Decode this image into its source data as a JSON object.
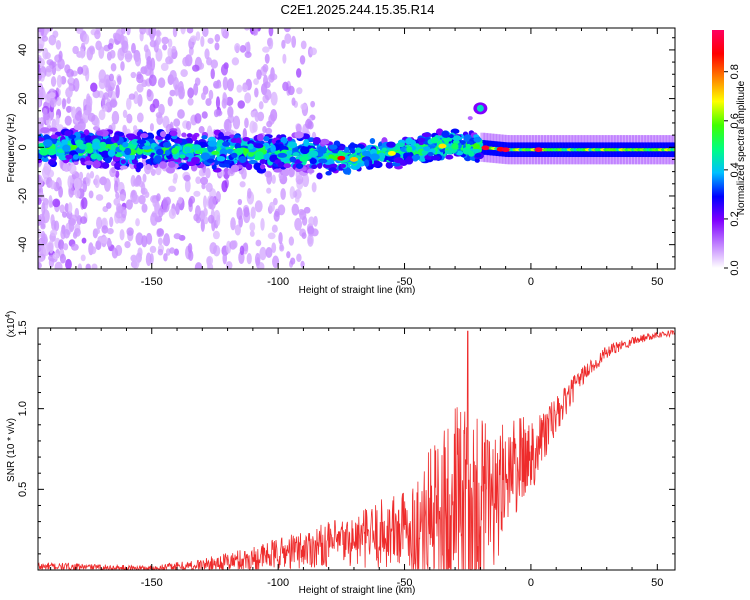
{
  "title": "C2E1.2025.244.15.35.R14",
  "chart_data": [
    {
      "type": "heatmap",
      "xlabel": "Height of straight line (km)",
      "ylabel": "Frequency (Hz)",
      "xlim": [
        -195,
        57
      ],
      "ylim": [
        -50,
        49
      ],
      "xticks": [
        -150,
        -100,
        -50,
        0,
        50
      ],
      "xtick_labels": [
        "-150",
        "-100",
        "-50",
        "0",
        "50"
      ],
      "yticks": [
        -40,
        -20,
        0,
        20,
        40
      ],
      "ytick_labels": [
        "-40",
        "-20",
        "0",
        "20",
        "40"
      ],
      "colorbar": {
        "label": "Normalized spectral amplitude",
        "range": [
          0,
          0.97
        ],
        "ticks": [
          0.0,
          0.2,
          0.4,
          0.6,
          0.8
        ],
        "tick_labels": [
          "0.0",
          "0.2",
          "0.4",
          "0.6",
          "0.8"
        ],
        "colors": [
          "#ffffff",
          "#c080ff",
          "#8000ff",
          "#0000ff",
          "#00c0ff",
          "#00ff80",
          "#40ff00",
          "#ffff00",
          "#ff8000",
          "#ff0000",
          "#ff0060"
        ]
      },
      "ridge": {
        "x": [
          -195,
          -150,
          -100,
          -80,
          -70,
          -60,
          -50,
          -40,
          -30,
          -20,
          -10,
          0,
          20,
          57
        ],
        "frequency": [
          0,
          -1,
          -2,
          -4,
          -5,
          -3,
          -2,
          0,
          1,
          0,
          -1,
          -1,
          -1,
          -1
        ]
      },
      "feature": {
        "x": -20,
        "frequency": 16
      }
    },
    {
      "type": "line",
      "xlabel": "Height of straight line (km)",
      "ylabel": "SNR (10 * v/v)",
      "scale_label": "(x10",
      "scale_exponent": "4",
      "scale_suffix": ")",
      "xlim": [
        -195,
        57
      ],
      "ylim": [
        0,
        1.5
      ],
      "xticks": [
        -150,
        -100,
        -50,
        0,
        50
      ],
      "xtick_labels": [
        "-150",
        "-100",
        "-50",
        "0",
        "50"
      ],
      "yticks": [
        0.5,
        1.0,
        1.5
      ],
      "ytick_labels": [
        "0.5",
        "1.0",
        "1.5"
      ],
      "series": [
        {
          "name": "SNR",
          "color": "#ee2b2b",
          "x": [
            -195,
            -180,
            -160,
            -150,
            -140,
            -130,
            -120,
            -110,
            -100,
            -90,
            -80,
            -70,
            -60,
            -50,
            -45,
            -40,
            -35,
            -30,
            -25,
            -20,
            -15,
            -10,
            -5,
            0,
            10,
            20,
            30,
            40,
            50,
            57
          ],
          "mean": [
            0.02,
            0.02,
            0.01,
            0.01,
            0.02,
            0.03,
            0.05,
            0.07,
            0.1,
            0.13,
            0.16,
            0.18,
            0.22,
            0.25,
            0.28,
            0.35,
            0.4,
            0.42,
            0.45,
            0.44,
            0.5,
            0.6,
            0.65,
            0.72,
            0.95,
            1.2,
            1.35,
            1.42,
            1.46,
            1.47
          ],
          "noise": [
            0.03,
            0.02,
            0.02,
            0.02,
            0.03,
            0.04,
            0.06,
            0.08,
            0.1,
            0.12,
            0.14,
            0.16,
            0.22,
            0.26,
            0.3,
            0.4,
            0.5,
            0.6,
            0.55,
            0.55,
            0.4,
            0.35,
            0.3,
            0.25,
            0.12,
            0.06,
            0.04,
            0.03,
            0.02,
            0.02
          ],
          "peak": {
            "x": -25,
            "y": 1.48
          }
        }
      ]
    }
  ]
}
